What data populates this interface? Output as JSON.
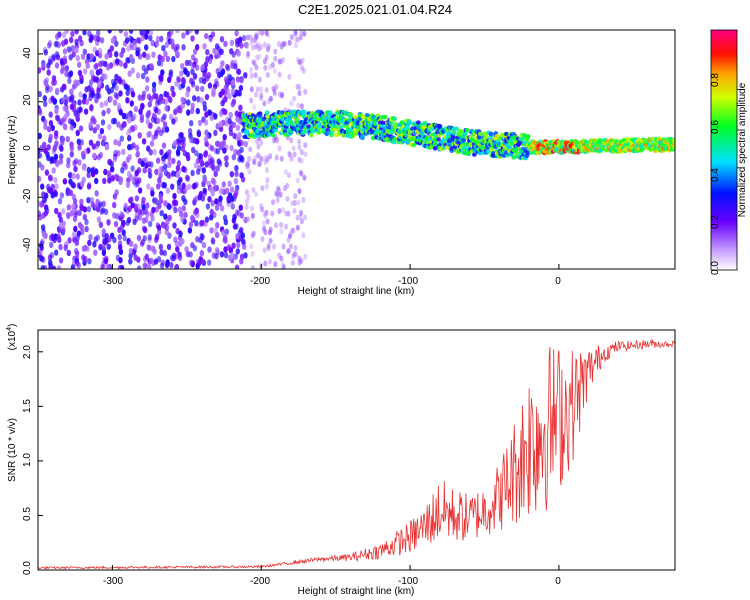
{
  "chart_data": [
    {
      "type": "heatmap",
      "title": "C2E1.2025.021.01.04.R24",
      "xlabel": "Height of straight line (km)",
      "ylabel": "Frequency (Hz)",
      "xlim": [
        -350,
        78
      ],
      "ylim": [
        -50,
        50
      ],
      "xticks": [
        "-300",
        "-200",
        "-100",
        "0"
      ],
      "yticks": [
        "40",
        "20",
        "0",
        "-20",
        "-40"
      ],
      "colorbar": {
        "label": "Normalized spectral amplitude",
        "range": [
          0,
          1
        ],
        "ticks": [
          "0.0",
          "0.2",
          "0.4",
          "0.6",
          "0.8"
        ]
      },
      "band_centerline": {
        "x": [
          -212,
          -180,
          -150,
          -120,
          -100,
          -80,
          -60,
          -40,
          -20,
          0,
          30,
          60,
          78
        ],
        "y": [
          10,
          11,
          11,
          9,
          7,
          5,
          3,
          2,
          1,
          1,
          1.5,
          2,
          2
        ]
      }
    },
    {
      "type": "line",
      "xlabel": "Height of straight line (km)",
      "ylabel": "SNR (10 * v/v)",
      "exponent_label": "(x10",
      "exponent_sup": "4",
      "exponent_close": ")",
      "xlim": [
        -350,
        78
      ],
      "ylim": [
        0,
        2.2
      ],
      "xticks": [
        "-300",
        "-200",
        "-100",
        "0"
      ],
      "yticks": [
        "0.0",
        "0.5",
        "1.0",
        "1.5",
        "2.0"
      ],
      "color": "#e83030",
      "envelope": {
        "x": [
          -350,
          -200,
          -180,
          -160,
          -140,
          -120,
          -100,
          -90,
          -80,
          -70,
          -60,
          -50,
          -40,
          -30,
          -20,
          -10,
          0,
          10,
          20,
          30,
          40,
          50,
          60,
          70,
          78
        ],
        "low": [
          0.01,
          0.02,
          0.05,
          0.08,
          0.08,
          0.1,
          0.15,
          0.2,
          0.25,
          0.25,
          0.25,
          0.3,
          0.35,
          0.4,
          0.45,
          0.5,
          0.7,
          1.0,
          1.6,
          1.9,
          2.0,
          2.02,
          2.03,
          2.04,
          2.05
        ],
        "high": [
          0.03,
          0.04,
          0.08,
          0.12,
          0.15,
          0.25,
          0.45,
          0.6,
          0.85,
          0.75,
          0.7,
          0.8,
          1.0,
          1.4,
          1.9,
          2.1,
          2.1,
          2.05,
          2.05,
          2.08,
          2.1,
          2.1,
          2.12,
          2.1,
          2.1
        ]
      }
    }
  ]
}
